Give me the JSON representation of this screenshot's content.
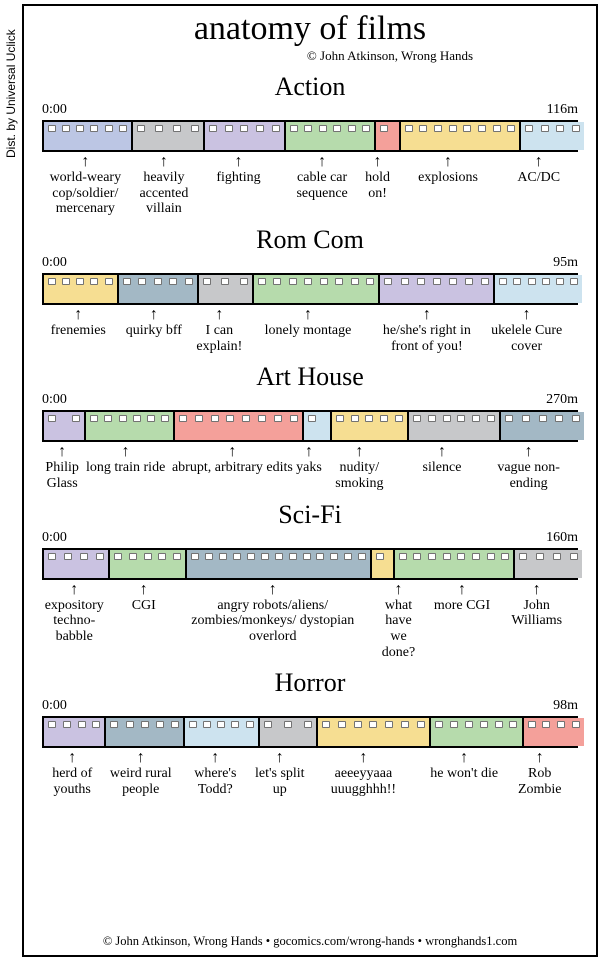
{
  "title": "anatomy of films",
  "credit": "© John Atkinson, Wrong Hands",
  "dist": "Dist. by Universal Uclick",
  "footer": "© John Atkinson, Wrong Hands • gocomics.com/wrong-hands • wronghands1.com",
  "colors": {
    "blue": "#bcc6e4",
    "grey": "#c7c8ca",
    "purple": "#cac2e1",
    "green": "#b6dbac",
    "red": "#f4a09a",
    "yellow": "#f6de92",
    "ltblue": "#cde3ef",
    "slate": "#a3b8c5"
  },
  "strip_border": "#000000",
  "genres": [
    {
      "name": "Action",
      "start": "0:00",
      "end": "116m",
      "segs": [
        {
          "w": 86,
          "c": "blue",
          "label": "world-weary cop/soldier/ mercenary"
        },
        {
          "w": 70,
          "c": "grey",
          "label": "heavily accented villain"
        },
        {
          "w": 78,
          "c": "purple",
          "label": "fighting"
        },
        {
          "w": 88,
          "c": "green",
          "label": "cable car sequence"
        },
        {
          "w": 22,
          "c": "red",
          "label": "hold on!"
        },
        {
          "w": 118,
          "c": "yellow",
          "label": "explosions"
        },
        {
          "w": 62,
          "c": "ltblue",
          "label": "AC/DC"
        }
      ]
    },
    {
      "name": "Rom Com",
      "start": "0:00",
      "end": "95m",
      "segs": [
        {
          "w": 72,
          "c": "yellow",
          "label": "frenemies"
        },
        {
          "w": 78,
          "c": "slate",
          "label": "quirky bff"
        },
        {
          "w": 52,
          "c": "grey",
          "label": "I can explain!"
        },
        {
          "w": 124,
          "c": "green",
          "label": "lonely montage"
        },
        {
          "w": 112,
          "c": "purple",
          "label": "he/she's right in front of you!"
        },
        {
          "w": 86,
          "c": "ltblue",
          "label": "ukelele Cure cover"
        }
      ]
    },
    {
      "name": "Art House",
      "start": "0:00",
      "end": "270m",
      "segs": [
        {
          "w": 40,
          "c": "purple",
          "label": "Philip Glass"
        },
        {
          "w": 86,
          "c": "green",
          "label": "long train ride"
        },
        {
          "w": 126,
          "c": "red",
          "label": "abrupt, arbitrary edits"
        },
        {
          "w": 26,
          "c": "ltblue",
          "label": "yaks"
        },
        {
          "w": 74,
          "c": "yellow",
          "label": "nudity/ smoking"
        },
        {
          "w": 90,
          "c": "grey",
          "label": "silence"
        },
        {
          "w": 82,
          "c": "slate",
          "label": "vague non-ending"
        }
      ]
    },
    {
      "name": "Sci-Fi",
      "start": "0:00",
      "end": "160m",
      "segs": [
        {
          "w": 64,
          "c": "purple",
          "label": "expository techno- babble"
        },
        {
          "w": 74,
          "c": "green",
          "label": "CGI"
        },
        {
          "w": 182,
          "c": "slate",
          "label": "angry robots/aliens/ zombies/monkeys/ dystopian overlord"
        },
        {
          "w": 20,
          "c": "yellow",
          "label": "what have we done?",
          "shift": 24
        },
        {
          "w": 118,
          "c": "green",
          "label": "more CGI",
          "shift": 18
        },
        {
          "w": 66,
          "c": "grey",
          "label": "John Williams"
        }
      ]
    },
    {
      "name": "Horror",
      "start": "0:00",
      "end": "98m",
      "segs": [
        {
          "w": 60,
          "c": "purple",
          "label": "herd of youths"
        },
        {
          "w": 76,
          "c": "slate",
          "label": "weird rural people"
        },
        {
          "w": 72,
          "c": "ltblue",
          "label": "where's Todd?"
        },
        {
          "w": 56,
          "c": "grey",
          "label": "let's split up"
        },
        {
          "w": 110,
          "c": "yellow",
          "label": "aeeeyyaaa uuugghhh!!"
        },
        {
          "w": 90,
          "c": "green",
          "label": "he won't die"
        },
        {
          "w": 60,
          "c": "red",
          "label": "Rob Zombie"
        }
      ]
    }
  ]
}
